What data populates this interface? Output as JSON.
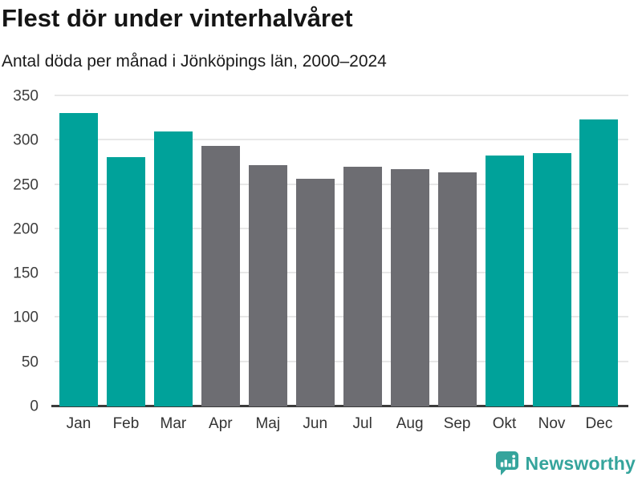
{
  "header": {
    "title": "Flest dör under vinterhalvåret",
    "subtitle": "Antal döda per månad i Jönköpings län, 2000–2024"
  },
  "chart_data": {
    "type": "bar",
    "title": "Flest dör under vinterhalvåret",
    "subtitle": "Antal döda per månad i Jönköpings län, 2000–2024",
    "categories": [
      "Jan",
      "Feb",
      "Mar",
      "Apr",
      "Maj",
      "Jun",
      "Jul",
      "Aug",
      "Sep",
      "Okt",
      "Nov",
      "Dec"
    ],
    "values": [
      331,
      281,
      310,
      294,
      272,
      257,
      270,
      268,
      264,
      283,
      286,
      324
    ],
    "bar_colors": [
      "teal",
      "teal",
      "teal",
      "gray",
      "gray",
      "gray",
      "gray",
      "gray",
      "gray",
      "teal",
      "teal",
      "teal"
    ],
    "colors": {
      "teal": "#00a29a",
      "gray": "#6d6d72"
    },
    "xlabel": "",
    "ylabel": "",
    "ylim": [
      0,
      350
    ],
    "yticks": [
      0,
      50,
      100,
      150,
      200,
      250,
      300,
      350
    ],
    "grid": true,
    "legend": "none"
  },
  "footer": {
    "brand": "Newsworthy",
    "brand_color": "#35a49c",
    "logo_icon": "bar-chart-speech-bubble-icon"
  }
}
